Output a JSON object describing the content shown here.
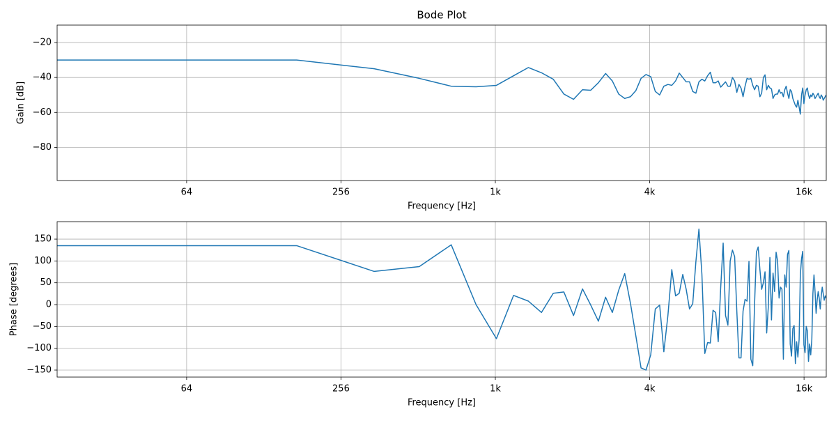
{
  "chart_data": [
    {
      "type": "line",
      "title": "Bode Plot",
      "xlabel": "Frequency [Hz]",
      "ylabel": "Gain [dB]",
      "xscale": "log",
      "log_base": 2,
      "grid": true,
      "xlim": [
        20,
        20000
      ],
      "xticks": [
        64,
        256,
        {
          "value": 1024,
          "label": "1k"
        },
        {
          "value": 4096,
          "label": "4k"
        },
        {
          "value": 16384,
          "label": "16k"
        }
      ],
      "ylim": [
        -99,
        -10
      ],
      "yticks": [
        {
          "value": -20,
          "label": "−20"
        },
        {
          "value": -40,
          "label": "−40"
        },
        {
          "value": -60,
          "label": "−60"
        },
        {
          "value": -80,
          "label": "−80"
        }
      ],
      "color": "#1f77b4",
      "x": [
        20,
        172,
        345,
        517,
        689,
        861,
        1034,
        1206,
        1378,
        1550,
        1723,
        1895,
        2067,
        2240,
        2412,
        2584,
        2756,
        2929,
        3101,
        3273,
        3446,
        3618,
        3790,
        3962,
        4135,
        4307,
        4479,
        4651,
        4824,
        4996,
        5168,
        5340,
        5513,
        5685,
        5857,
        6029,
        6202,
        6374,
        6546,
        6718,
        6891,
        7063,
        7235,
        7407,
        7580,
        7752,
        7924,
        8096,
        8269,
        8441,
        8613,
        8785,
        8958,
        9130,
        9302,
        9474,
        9647,
        9819,
        9991,
        10163,
        10336,
        10508,
        10680,
        10852,
        11024,
        11197,
        11369,
        11541,
        11713,
        11886,
        12058,
        12230,
        12402,
        12575,
        12747,
        12919,
        13091,
        13264,
        13436,
        13608,
        13780,
        13953,
        14125,
        14297,
        14469,
        14642,
        14814,
        14986,
        15158,
        15331,
        15503,
        15675,
        15847,
        16019,
        16192,
        16364,
        16536,
        16708,
        16881,
        17053,
        17225,
        17397,
        17570,
        17742,
        17914,
        18086,
        18259,
        18431,
        18603,
        18775,
        18948,
        19120,
        19292,
        19464,
        19637,
        19809,
        19981
      ],
      "values": [
        -30,
        -30,
        -35,
        -40.5,
        -45,
        -45.3,
        -44.5,
        -39,
        -34.3,
        -37.3,
        -41,
        -49.5,
        -52.5,
        -47,
        -47.3,
        -43,
        -37.7,
        -42,
        -49.5,
        -52,
        -51,
        -47.5,
        -40.5,
        -38.3,
        -39.5,
        -48,
        -50,
        -45,
        -44,
        -44.5,
        -42,
        -37.5,
        -40,
        -42.5,
        -42.5,
        -48,
        -49,
        -42.5,
        -41,
        -42,
        -39,
        -37,
        -43,
        -43,
        -42,
        -45.5,
        -44,
        -42.5,
        -45,
        -45,
        -40,
        -42,
        -48.5,
        -44,
        -46,
        -51,
        -45,
        -40.5,
        -41,
        -40.5,
        -44.5,
        -47,
        -44.5,
        -45,
        -51,
        -49,
        -40,
        -38.5,
        -47,
        -44.5,
        -46,
        -46.5,
        -52,
        -50,
        -49.5,
        -49.5,
        -47,
        -49,
        -48.5,
        -51,
        -47,
        -45,
        -49,
        -52,
        -47,
        -48,
        -52,
        -54,
        -56,
        -57,
        -53,
        -57,
        -61,
        -50,
        -46,
        -55,
        -50,
        -47,
        -46,
        -50,
        -52,
        -50,
        -51,
        -49,
        -50,
        -52,
        -51,
        -50,
        -49,
        -51,
        -52,
        -50,
        -51,
        -53,
        -52,
        -51,
        -50
      ]
    },
    {
      "type": "line",
      "xlabel": "Frequency [Hz]",
      "ylabel": "Phase [degrees]",
      "xscale": "log",
      "log_base": 2,
      "grid": true,
      "xlim": [
        20,
        20000
      ],
      "xticks": [
        64,
        256,
        {
          "value": 1024,
          "label": "1k"
        },
        {
          "value": 4096,
          "label": "4k"
        },
        {
          "value": 16384,
          "label": "16k"
        }
      ],
      "ylim": [
        -166,
        190
      ],
      "yticks": [
        150,
        100,
        50,
        0,
        {
          "value": -50,
          "label": "−50"
        },
        {
          "value": -100,
          "label": "−100"
        },
        {
          "value": -150,
          "label": "−150"
        }
      ],
      "color": "#1f77b4",
      "x": [
        20,
        172,
        345,
        517,
        689,
        861,
        1034,
        1206,
        1378,
        1550,
        1723,
        1895,
        2067,
        2240,
        2412,
        2584,
        2756,
        2929,
        3101,
        3273,
        3446,
        3618,
        3790,
        3962,
        4135,
        4307,
        4479,
        4651,
        4824,
        4996,
        5168,
        5340,
        5513,
        5685,
        5857,
        6029,
        6202,
        6374,
        6546,
        6718,
        6891,
        7063,
        7235,
        7407,
        7580,
        7752,
        7924,
        8096,
        8269,
        8441,
        8613,
        8785,
        8958,
        9130,
        9302,
        9474,
        9647,
        9819,
        9991,
        10163,
        10336,
        10508,
        10680,
        10852,
        11024,
        11197,
        11369,
        11541,
        11713,
        11886,
        12058,
        12230,
        12402,
        12575,
        12747,
        12919,
        13091,
        13264,
        13436,
        13608,
        13780,
        13953,
        14125,
        14297,
        14469,
        14642,
        14814,
        14986,
        15158,
        15331,
        15503,
        15675,
        15847,
        16019,
        16192,
        16364,
        16536,
        16708,
        16881,
        17053,
        17225,
        17397,
        17570,
        17742,
        17914,
        18086,
        18259,
        18431,
        18603,
        18775,
        18948,
        19120,
        19292,
        19464,
        19637,
        19809,
        19981
      ],
      "values": [
        135,
        135,
        76,
        87,
        137,
        0,
        -78,
        21,
        8,
        -18,
        26,
        29,
        -25,
        36,
        -1,
        -38,
        17,
        -18,
        33,
        71,
        3,
        -72,
        -145,
        -150,
        -115,
        -10,
        -1,
        -108,
        -25,
        80,
        20,
        26,
        69,
        35,
        -10,
        2,
        98,
        173,
        70,
        -112,
        -87,
        -88,
        -13,
        -18,
        -85,
        40,
        141,
        -25,
        -47,
        100,
        125,
        110,
        -15,
        -122,
        -122,
        -15,
        12,
        8,
        99,
        -125,
        -140,
        2,
        120,
        132,
        80,
        35,
        50,
        75,
        -65,
        -5,
        108,
        -35,
        72,
        30,
        120,
        100,
        15,
        40,
        35,
        -125,
        68,
        40,
        115,
        124,
        -90,
        -118,
        -55,
        -48,
        -135,
        -85,
        -120,
        -80,
        68,
        105,
        122,
        -92,
        -110,
        -50,
        -60,
        -130,
        -90,
        -115,
        -80,
        25,
        68,
        30,
        -20,
        10,
        30,
        15,
        -10,
        20,
        40,
        25,
        10,
        20,
        15
      ]
    }
  ]
}
